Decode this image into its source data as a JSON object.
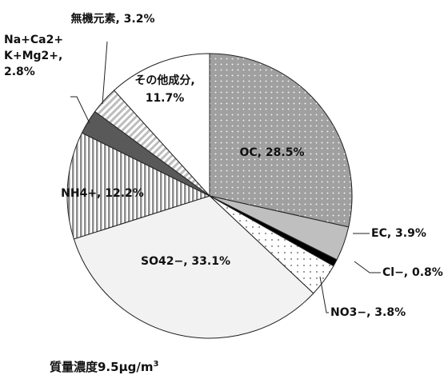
{
  "chart_data": {
    "type": "pie",
    "start_angle_deg": 0,
    "direction": "clockwise",
    "slices": [
      {
        "name": "OC",
        "value": 28.5,
        "label": "OC, 28.5%",
        "fill": "dots-dense",
        "color": "#a0a0a0"
      },
      {
        "name": "EC",
        "value": 3.9,
        "label": "EC, 3.9%",
        "fill": "solid",
        "color": "#bfbfbf"
      },
      {
        "name": "Cl−",
        "value": 0.8,
        "label": "Cl−, 0.8%",
        "fill": "solid",
        "color": "#000000"
      },
      {
        "name": "NO3−",
        "value": 3.8,
        "label": "NO3−, 3.8%",
        "fill": "dots-sparse",
        "color": "#ffffff"
      },
      {
        "name": "SO42−",
        "value": 33.1,
        "label": "SO42−, 33.1%",
        "fill": "solid",
        "color": "#f2f2f2"
      },
      {
        "name": "NH4+",
        "value": 12.2,
        "label": "NH4+, 12.2%",
        "fill": "vertical-stripes",
        "color": "#8c8c8c"
      },
      {
        "name": "Na+Ca2+K+Mg2+",
        "value": 2.8,
        "label_lines": [
          "Na+Ca2+",
          "K+Mg2+,",
          "2.8%"
        ],
        "fill": "solid",
        "color": "#595959"
      },
      {
        "name": "無機元素",
        "value": 3.2,
        "label": "無機元素, 3.2%",
        "fill": "diagonal-stripes",
        "color": "#bfbfbf"
      },
      {
        "name": "その他成分",
        "value": 11.7,
        "label_lines": [
          "その他成分,",
          "11.7%"
        ],
        "fill": "solid",
        "color": "#ffffff"
      }
    ],
    "caption": {
      "prefix": "質量濃度9.5",
      "unit": "μg/m",
      "unit_superscript": "3"
    }
  }
}
